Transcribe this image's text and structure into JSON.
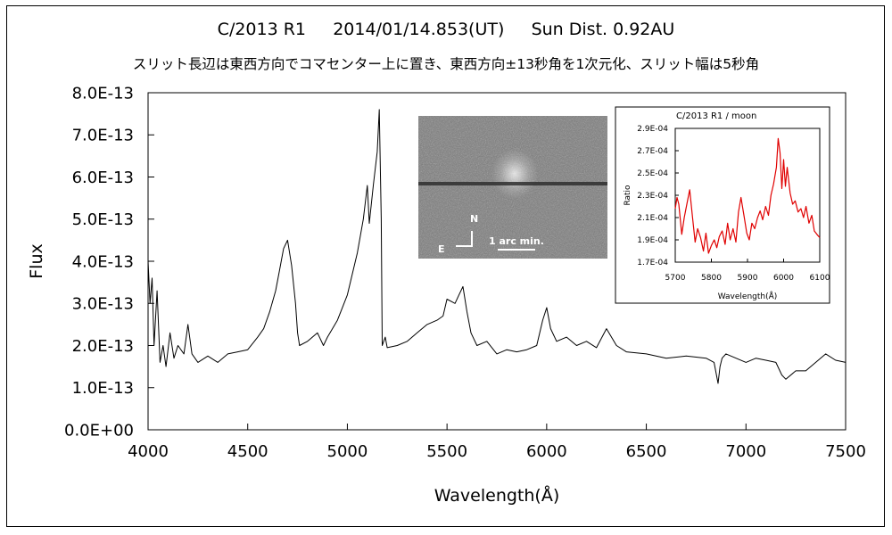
{
  "title_line1": "C/2013 R1     2014/01/14.853(UT)     Sun Dist. 0.92AU",
  "title_line2": "スリット長辺は東西方向でコマセンター上に置き、東西方向±13秒角を1次元化、スリット幅は5秒角",
  "inset_image": {
    "north_label": "N",
    "east_label": "E",
    "scale_label": "1 arc min."
  },
  "chart_data": [
    {
      "type": "line",
      "title": "",
      "xlabel": "Wavelength(Å)",
      "ylabel": "Flux",
      "xlim": [
        4000,
        7500
      ],
      "ylim": [
        0,
        8e-13
      ],
      "x_ticks": [
        4000,
        4500,
        5000,
        5500,
        6000,
        6500,
        7000,
        7500
      ],
      "x_tick_labels": [
        "4000",
        "4500",
        "5000",
        "5500",
        "6000",
        "6500",
        "7000",
        "7500"
      ],
      "y_ticks": [
        0,
        1e-13,
        2e-13,
        3e-13,
        4e-13,
        5e-13,
        6e-13,
        7e-13,
        8e-13
      ],
      "y_tick_labels": [
        "0.0E+00",
        "1.0E-13",
        "2.0E-13",
        "3.0E-13",
        "4.0E-13",
        "5.0E-13",
        "6.0E-13",
        "7.0E-13",
        "8.0E-13"
      ],
      "grid": false,
      "color": "#000000",
      "series": [
        {
          "x": [
            4000,
            4010,
            4020,
            4030,
            4045,
            4060,
            4075,
            4090,
            4110,
            4130,
            4150,
            4180,
            4200,
            4220,
            4250,
            4300,
            4350,
            4400,
            4450,
            4500,
            4550,
            4580,
            4610,
            4640,
            4660,
            4680,
            4700,
            4720,
            4740,
            4750,
            4760,
            4800,
            4850,
            4880,
            4900,
            4950,
            5000,
            5050,
            5080,
            5100,
            5110,
            5130,
            5150,
            5160,
            5170,
            5175,
            5190,
            5200,
            5250,
            5300,
            5350,
            5400,
            5450,
            5480,
            5500,
            5540,
            5560,
            5580,
            5600,
            5620,
            5650,
            5700,
            5750,
            5800,
            5850,
            5900,
            5950,
            5980,
            6000,
            6020,
            6050,
            6100,
            6150,
            6200,
            6250,
            6300,
            6350,
            6400,
            6500,
            6600,
            6700,
            6800,
            6840,
            6860,
            6870,
            6880,
            6900,
            6950,
            7000,
            7050,
            7100,
            7150,
            7180,
            7200,
            7250,
            7300,
            7350,
            7400,
            7450,
            7500
          ],
          "y": [
            4e-13,
            3e-13,
            3.6e-13,
            2e-13,
            3.3e-13,
            1.6e-13,
            2e-13,
            1.5e-13,
            2.3e-13,
            1.7e-13,
            2e-13,
            1.8e-13,
            2.5e-13,
            1.8e-13,
            1.6e-13,
            1.75e-13,
            1.6e-13,
            1.8e-13,
            1.85e-13,
            1.9e-13,
            2.2e-13,
            2.4e-13,
            2.8e-13,
            3.3e-13,
            3.8e-13,
            4.3e-13,
            4.5e-13,
            3.9e-13,
            3e-13,
            2.3e-13,
            2e-13,
            2.1e-13,
            2.3e-13,
            2e-13,
            2.2e-13,
            2.6e-13,
            3.2e-13,
            4.2e-13,
            5e-13,
            5.8e-13,
            4.9e-13,
            5.8e-13,
            6.6e-13,
            7.6e-13,
            5e-13,
            2e-13,
            2.2e-13,
            1.95e-13,
            2e-13,
            2.1e-13,
            2.3e-13,
            2.5e-13,
            2.6e-13,
            2.7e-13,
            3.1e-13,
            3e-13,
            3.2e-13,
            3.4e-13,
            2.8e-13,
            2.3e-13,
            2e-13,
            2.1e-13,
            1.8e-13,
            1.9e-13,
            1.85e-13,
            1.9e-13,
            2e-13,
            2.6e-13,
            2.9e-13,
            2.4e-13,
            2.1e-13,
            2.2e-13,
            2e-13,
            2.1e-13,
            1.95e-13,
            2.4e-13,
            2e-13,
            1.85e-13,
            1.8e-13,
            1.7e-13,
            1.75e-13,
            1.7e-13,
            1.6e-13,
            1.1e-13,
            1.5e-13,
            1.7e-13,
            1.8e-13,
            1.7e-13,
            1.6e-13,
            1.7e-13,
            1.65e-13,
            1.6e-13,
            1.3e-13,
            1.2e-13,
            1.4e-13,
            1.4e-13,
            1.6e-13,
            1.8e-13,
            1.65e-13,
            1.6e-13
          ]
        }
      ]
    },
    {
      "type": "line",
      "title": "C/2013 R1 / moon",
      "xlabel": "Wavelength(Å)",
      "ylabel": "Ratio",
      "xlim": [
        5700,
        6100
      ],
      "ylim": [
        0.00017,
        0.00029
      ],
      "x_ticks": [
        5700,
        5800,
        5900,
        6000,
        6100
      ],
      "x_tick_labels": [
        "5700",
        "5800",
        "5900",
        "6000",
        "6100"
      ],
      "y_ticks": [
        0.00017,
        0.00019,
        0.00021,
        0.00023,
        0.00025,
        0.00027,
        0.00029
      ],
      "y_tick_labels": [
        "1.7E-04",
        "1.9E-04",
        "2.1E-04",
        "2.3E-04",
        "2.5E-04",
        "2.7E-04",
        "2.9E-04"
      ],
      "grid": false,
      "color": "#e00000",
      "series": [
        {
          "x": [
            5700,
            5705,
            5710,
            5718,
            5725,
            5732,
            5740,
            5748,
            5755,
            5762,
            5770,
            5778,
            5785,
            5792,
            5800,
            5808,
            5815,
            5822,
            5830,
            5838,
            5845,
            5852,
            5860,
            5868,
            5875,
            5882,
            5890,
            5898,
            5905,
            5912,
            5920,
            5928,
            5935,
            5942,
            5950,
            5958,
            5965,
            5972,
            5980,
            5985,
            5990,
            5995,
            6000,
            6005,
            6010,
            6018,
            6025,
            6032,
            6040,
            6048,
            6055,
            6062,
            6070,
            6078,
            6085,
            6092,
            6100
          ],
          "y": [
            0.000218,
            0.000228,
            0.000222,
            0.000195,
            0.00021,
            0.000222,
            0.000235,
            0.00021,
            0.000188,
            0.0002,
            0.000192,
            0.00018,
            0.000196,
            0.000178,
            0.000185,
            0.00019,
            0.000183,
            0.000193,
            0.000198,
            0.000186,
            0.000205,
            0.00019,
            0.0002,
            0.000188,
            0.000215,
            0.000228,
            0.000212,
            0.000196,
            0.00019,
            0.000205,
            0.0002,
            0.00021,
            0.000216,
            0.000208,
            0.00022,
            0.000212,
            0.00023,
            0.00024,
            0.000255,
            0.000281,
            0.000268,
            0.000236,
            0.000262,
            0.000238,
            0.000255,
            0.000232,
            0.000222,
            0.000225,
            0.000215,
            0.000218,
            0.00021,
            0.00022,
            0.000205,
            0.000212,
            0.000198,
            0.000195,
            0.000192
          ]
        }
      ]
    }
  ]
}
